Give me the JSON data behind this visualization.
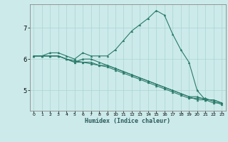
{
  "xlabel": "Humidex (Indice chaleur)",
  "ylabel": "",
  "background_color": "#cceaea",
  "grid_color": "#aad4d4",
  "line_color": "#2a7a6a",
  "xlim": [
    -0.5,
    23.5
  ],
  "ylim": [
    4.35,
    7.75
  ],
  "yticks": [
    5,
    6,
    7
  ],
  "xticks": [
    0,
    1,
    2,
    3,
    4,
    5,
    6,
    7,
    8,
    9,
    10,
    11,
    12,
    13,
    14,
    15,
    16,
    17,
    18,
    19,
    20,
    21,
    22,
    23
  ],
  "series": [
    [
      6.1,
      6.1,
      6.2,
      6.2,
      6.1,
      6.0,
      6.2,
      6.1,
      6.1,
      6.1,
      6.3,
      6.6,
      6.9,
      7.1,
      7.3,
      7.55,
      7.4,
      6.8,
      6.3,
      5.9,
      5.0,
      4.7,
      4.7,
      4.6
    ],
    [
      6.1,
      6.1,
      6.1,
      6.1,
      6.0,
      5.9,
      6.0,
      6.0,
      5.9,
      5.8,
      5.7,
      5.6,
      5.5,
      5.4,
      5.3,
      5.2,
      5.1,
      5.0,
      4.9,
      4.8,
      4.8,
      4.7,
      4.6,
      4.6
    ],
    [
      6.1,
      6.1,
      6.1,
      6.1,
      6.0,
      5.9,
      5.9,
      5.9,
      5.8,
      5.8,
      5.7,
      5.6,
      5.5,
      5.4,
      5.3,
      5.2,
      5.1,
      5.0,
      4.9,
      4.8,
      4.7,
      4.7,
      4.7,
      4.6
    ],
    [
      6.1,
      6.1,
      6.1,
      6.1,
      6.0,
      5.95,
      5.9,
      5.85,
      5.8,
      5.75,
      5.65,
      5.55,
      5.45,
      5.35,
      5.25,
      5.15,
      5.05,
      4.95,
      4.85,
      4.75,
      4.75,
      4.75,
      4.65,
      4.55
    ]
  ]
}
